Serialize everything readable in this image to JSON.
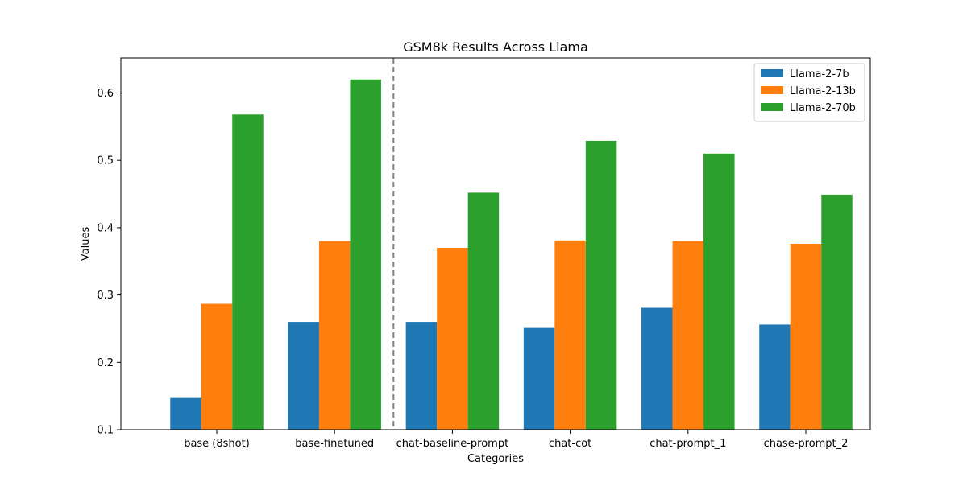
{
  "chart_data": {
    "type": "bar",
    "title": "GSM8k Results Across Llama",
    "xlabel": "Categories",
    "ylabel": "Values",
    "categories": [
      "base (8shot)",
      "base-finetuned",
      "chat-baseline-prompt",
      "chat-cot",
      "chat-prompt_1",
      "chase-prompt_2"
    ],
    "series": [
      {
        "name": "Llama-2-7b",
        "color": "#1f77b4",
        "values": [
          0.147,
          0.26,
          0.26,
          0.251,
          0.281,
          0.256
        ]
      },
      {
        "name": "Llama-2-13b",
        "color": "#ff7f0e",
        "values": [
          0.287,
          0.38,
          0.37,
          0.381,
          0.38,
          0.376
        ]
      },
      {
        "name": "Llama-2-70b",
        "color": "#2ca02c",
        "values": [
          0.568,
          0.62,
          0.452,
          0.529,
          0.51,
          0.449
        ]
      }
    ],
    "ylim": [
      0.1,
      0.652
    ],
    "yticks": [
      "0.1",
      "0.2",
      "0.3",
      "0.4",
      "0.5",
      "0.6"
    ],
    "separator_after_category": 1,
    "separator_style": "dashed",
    "separator_color": "#808080",
    "grid": false,
    "legend_position": "top-right"
  }
}
